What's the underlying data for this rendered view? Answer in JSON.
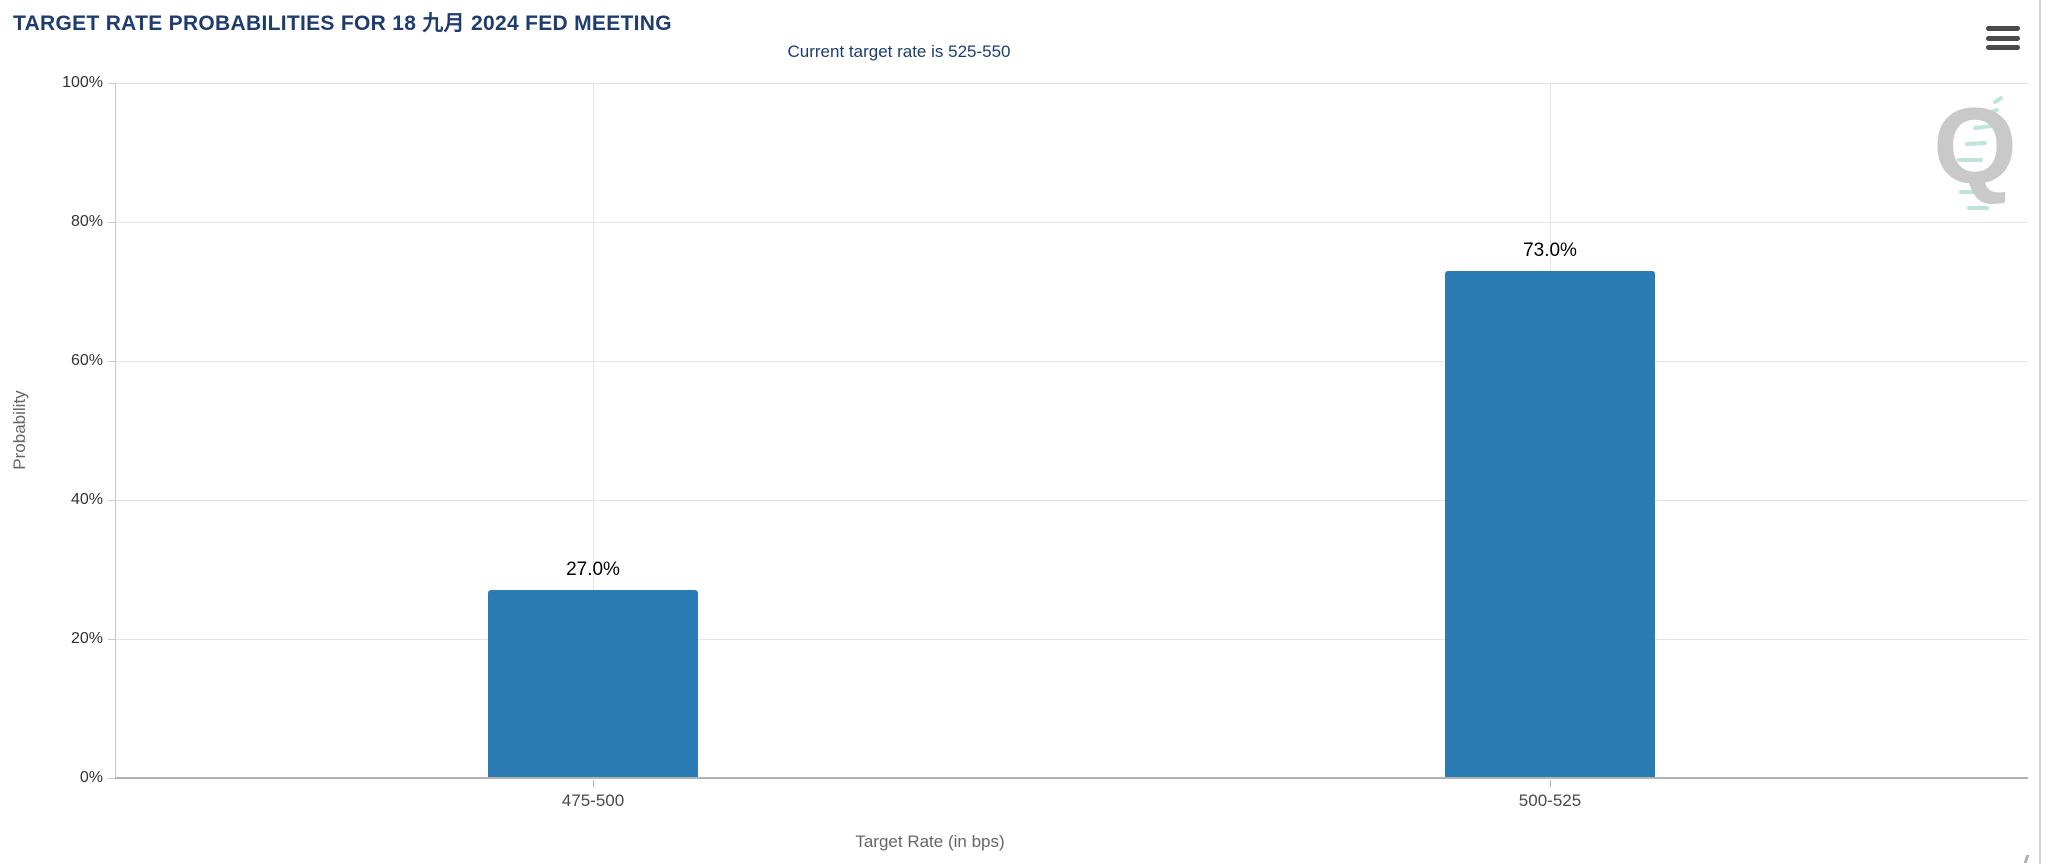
{
  "header": {
    "title": "TARGET RATE PROBABILITIES FOR 18 九月 2024 FED MEETING"
  },
  "toolbar": {
    "menu_icon": "hamburger-menu-icon"
  },
  "watermark": {
    "letter": "Q"
  },
  "colors": {
    "bar": "#2b7cb4",
    "title_text": "#1e3c6e",
    "grid": "#e5e5e5",
    "axis": "#b3b3b3",
    "tick_label": "#333333",
    "category_label": "#4a4a4a",
    "axis_title": "#666666",
    "watermark_gray": "#c9c9c9",
    "watermark_teal": "#bfe4dc"
  },
  "chart_data": {
    "type": "bar",
    "title": "TARGET RATE PROBABILITIES FOR 18 九月 2024 FED MEETING",
    "subtitle": "Current target rate is 525-550",
    "categories": [
      "475-500",
      "500-525"
    ],
    "values": [
      27.0,
      73.0
    ],
    "value_labels": [
      "27.0%",
      "73.0%"
    ],
    "xlabel": "Target Rate (in bps)",
    "ylabel": "Probability",
    "ylim": [
      0,
      100
    ],
    "yticks": [
      0,
      20,
      40,
      60,
      80,
      100
    ],
    "ytick_labels": [
      "0%",
      "20%",
      "40%",
      "60%",
      "80%",
      "100%"
    ],
    "grid": true,
    "legend": false
  }
}
